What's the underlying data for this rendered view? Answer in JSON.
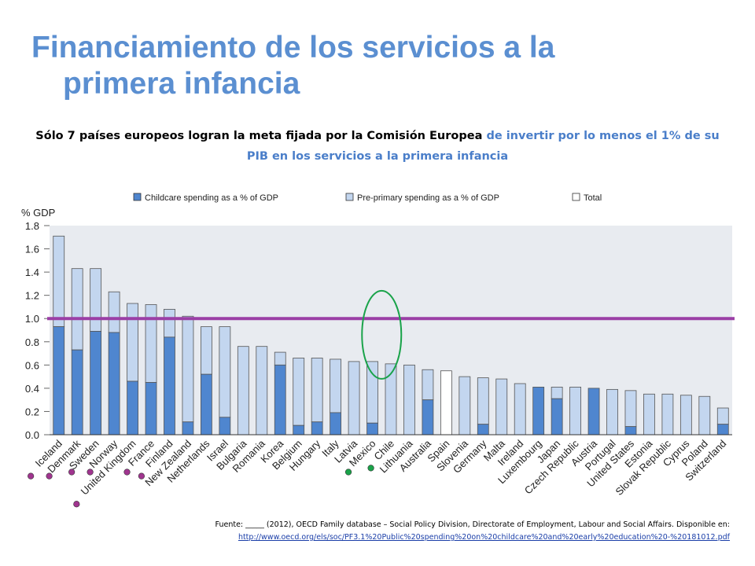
{
  "slide": {
    "title_line1": "Financiamiento de los servicios a la",
    "title_line2": "primera infancia",
    "subtitle_black": "Sólo 7 países europeos  logran la meta  fijada por la Comisión  Europea",
    "subtitle_blue": "de invertir por lo menos el 1% de su PIB en los servicios a la primera infancia",
    "footer_text": "Fuente: _____ (2012), OECD Family database – Social Policy Division, Directorate of Employment,  Labour and Social Affairs. Disponible en:",
    "footer_link": "http://www.oecd.org/els/soc/PF3.1%20Public%20spending%20on%20childcare%20and%20early%20education%20-%20181012.pdf"
  },
  "chart_data": {
    "type": "bar",
    "stacked": true,
    "ylabel": "% GDP",
    "ylim": [
      0,
      1.8
    ],
    "yticks": [
      "0.0",
      "0.2",
      "0.4",
      "0.6",
      "0.8",
      "1.0",
      "1.2",
      "1.4",
      "1.6",
      "1.8"
    ],
    "categories": [
      "Iceland",
      "Denmark",
      "Sweden",
      "Norway",
      "United Kingdom",
      "France",
      "Finland",
      "New Zealand",
      "Netherlands",
      "Israel",
      "Bulgaria",
      "Romania",
      "Korea",
      "Belgium",
      "Hungary",
      "Italy",
      "Latvia",
      "Mexico",
      "Chile",
      "Lithuania",
      "Australia",
      "Spain",
      "Slovenia",
      "Germany",
      "Malta",
      "Ireland",
      "Luxembourg",
      "Japan",
      "Czech Republic",
      "Austria",
      "Portugal",
      "United States",
      "Estonia",
      "Slovak Republic",
      "Cyprus",
      "Poland",
      "Switzerland"
    ],
    "series": [
      {
        "name": "Childcare spending as a % of GDP",
        "color": "#4f86cf",
        "values": [
          0.93,
          0.73,
          0.89,
          0.88,
          0.46,
          0.45,
          0.84,
          0.11,
          0.52,
          0.15,
          0,
          0,
          0.6,
          0.08,
          0.11,
          0.19,
          0,
          0.1,
          0,
          0,
          0.3,
          0,
          0,
          0.09,
          0,
          0,
          0.41,
          0.31,
          0,
          0.4,
          0,
          0.07,
          0,
          0,
          0,
          0,
          0.09
        ]
      },
      {
        "name": "Pre-primary spending as a % of GDP",
        "color": "#c3d6ef",
        "values": [
          0.78,
          0.7,
          0.54,
          0.35,
          0.67,
          0.67,
          0.24,
          0.91,
          0.41,
          0.78,
          0.76,
          0.76,
          0.11,
          0.58,
          0.55,
          0.46,
          0.63,
          0.53,
          0.61,
          0.6,
          0.26,
          0,
          0.5,
          0.4,
          0.48,
          0.44,
          0,
          0.1,
          0.41,
          0,
          0.39,
          0.31,
          0.35,
          0.35,
          0.34,
          0.33,
          0.14
        ]
      },
      {
        "name": "Total",
        "color": "#ffffff",
        "values": [
          0,
          0,
          0,
          0,
          0,
          0,
          0,
          0,
          0,
          0,
          0,
          0,
          0,
          0,
          0,
          0,
          0,
          0,
          0,
          0,
          0,
          0.55,
          0,
          0,
          0,
          0,
          0,
          0,
          0,
          0,
          0,
          0,
          0,
          0,
          0,
          0,
          0
        ]
      }
    ],
    "reference_line": {
      "y": 1.0,
      "color": "#9b3fa6"
    },
    "highlight_ellipse_categories": [
      "Mexico",
      "Chile"
    ],
    "highlight_ellipse_color": "#1aa34a",
    "markers": [
      {
        "category": "Iceland",
        "color": "#a0358f"
      },
      {
        "category": "Denmark",
        "color": "#a0358f"
      },
      {
        "category": "Sweden",
        "color": "#a0358f"
      },
      {
        "category": "Norway",
        "color": "#a0358f"
      },
      {
        "category": "United Kingdom",
        "color": "#a0358f"
      },
      {
        "category": "France",
        "color": "#a0358f"
      },
      {
        "category": "Finland",
        "color": "#a0358f"
      },
      {
        "category": "Mexico",
        "color": "#1aa34a"
      },
      {
        "category": "Chile",
        "color": "#1aa34a"
      }
    ],
    "legend_position": "top",
    "grid": false
  }
}
